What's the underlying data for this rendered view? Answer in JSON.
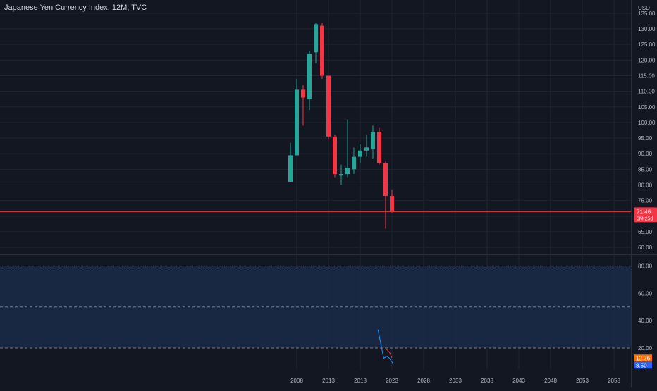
{
  "header": {
    "title": "Japanese Yen Currency Index, 12M, TVC"
  },
  "colors": {
    "background": "#131722",
    "grid": "#1f2430",
    "up": "#26a69a",
    "down": "#f23645",
    "axis_text": "#b2b5be",
    "price_line": "#f23645",
    "osc_band": "#1b2a46",
    "osc_dash": "#787b86",
    "osc_line_blue": "#2196f3",
    "osc_line_red": "#f23645",
    "osc_badge_orange": "#ff6d00",
    "osc_badge_blue": "#2962ff"
  },
  "chart_data": [
    {
      "type": "candlestick",
      "title": "Japanese Yen Currency Index, 12M, TVC",
      "currency_label": "USD",
      "ylim": [
        58,
        137
      ],
      "y_ticks": [
        60,
        65,
        70,
        75,
        80,
        85,
        90,
        95,
        100,
        105,
        110,
        115,
        120,
        125,
        130,
        135
      ],
      "y_tick_labels": [
        "60.00",
        "65.00",
        "70.00",
        "75.00",
        "80.00",
        "85.00",
        "90.00",
        "95.00",
        "100.00",
        "105.00",
        "110.00",
        "115.00",
        "120.00",
        "125.00",
        "130.00",
        "135.00"
      ],
      "x_ticks": [
        2008,
        2013,
        2018,
        2023,
        2028,
        2033,
        2038,
        2043,
        2048,
        2053,
        2058
      ],
      "x_tick_labels": [
        "2008",
        "2013",
        "2018",
        "2023",
        "2028",
        "2033",
        "2038",
        "2043",
        "2048",
        "2053",
        "2058"
      ],
      "candles": [
        {
          "year": 2007,
          "open": 81.0,
          "high": 93.5,
          "low": 81.0,
          "close": 89.5
        },
        {
          "year": 2008,
          "open": 89.5,
          "high": 114.0,
          "low": 89.5,
          "close": 110.5
        },
        {
          "year": 2009,
          "open": 110.5,
          "high": 112.0,
          "low": 99.0,
          "close": 108.0
        },
        {
          "year": 2010,
          "open": 107.5,
          "high": 123.0,
          "low": 104.0,
          "close": 122.0
        },
        {
          "year": 2011,
          "open": 122.5,
          "high": 132.0,
          "low": 119.0,
          "close": 131.5
        },
        {
          "year": 2012,
          "open": 131.0,
          "high": 132.0,
          "low": 114.0,
          "close": 115.0
        },
        {
          "year": 2013,
          "open": 115.0,
          "high": 115.0,
          "low": 94.5,
          "close": 95.5
        },
        {
          "year": 2014,
          "open": 95.5,
          "high": 96.0,
          "low": 82.5,
          "close": 83.5
        },
        {
          "year": 2015,
          "open": 83.0,
          "high": 86.5,
          "low": 80.0,
          "close": 83.5
        },
        {
          "year": 2016,
          "open": 83.5,
          "high": 101.0,
          "low": 82.5,
          "close": 85.5
        },
        {
          "year": 2017,
          "open": 85.0,
          "high": 92.0,
          "low": 83.5,
          "close": 89.0
        },
        {
          "year": 2018,
          "open": 89.0,
          "high": 93.0,
          "low": 87.0,
          "close": 91.0
        },
        {
          "year": 2019,
          "open": 91.0,
          "high": 96.0,
          "low": 89.0,
          "close": 92.0
        },
        {
          "year": 2020,
          "open": 91.5,
          "high": 99.0,
          "low": 88.5,
          "close": 97.0
        },
        {
          "year": 2021,
          "open": 97.0,
          "high": 98.5,
          "low": 86.5,
          "close": 87.0
        },
        {
          "year": 2022,
          "open": 87.0,
          "high": 87.5,
          "low": 66.0,
          "close": 76.5
        },
        {
          "year": 2023,
          "open": 76.5,
          "high": 78.5,
          "low": 71.0,
          "close": 71.5
        }
      ],
      "last_price": 71.46,
      "last_price_label": "71.46",
      "countdown_label": "6M 25d"
    },
    {
      "type": "line",
      "title": "",
      "ylim": [
        4,
        88
      ],
      "y_ticks": [
        20,
        40,
        60,
        80
      ],
      "y_tick_labels": [
        "20.00",
        "40.00",
        "60.00",
        "80.00"
      ],
      "band": {
        "from": 20,
        "to": 80
      },
      "dashed_levels": [
        20,
        50,
        80
      ],
      "series": [
        {
          "color_key": "osc_line_blue",
          "points": [
            {
              "x": 2020.8,
              "y": 33.5
            },
            {
              "x": 2021.7,
              "y": 12.5
            },
            {
              "x": 2022.2,
              "y": 14.0
            },
            {
              "x": 2022.6,
              "y": 12.5
            },
            {
              "x": 2023.2,
              "y": 8.5
            }
          ]
        },
        {
          "color_key": "osc_line_red",
          "points": [
            {
              "x": 2022.0,
              "y": 19.5
            },
            {
              "x": 2022.6,
              "y": 17.0
            },
            {
              "x": 2023.0,
              "y": 12.8
            }
          ]
        }
      ],
      "last_values": [
        {
          "label": "12.76",
          "color_key": "osc_badge_orange"
        },
        {
          "label": "8.50",
          "color_key": "osc_badge_blue"
        }
      ]
    }
  ]
}
